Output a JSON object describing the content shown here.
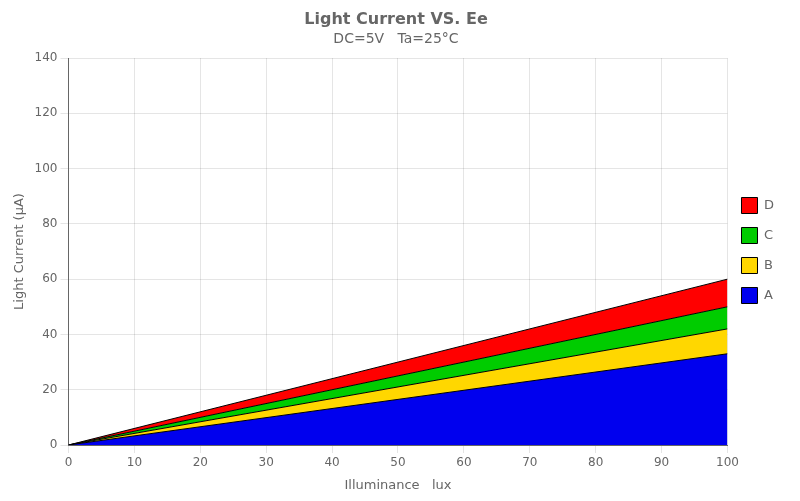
{
  "chart_data": {
    "type": "area",
    "title": "Light Current VS. Ee",
    "subtitle": "DC=5V   Ta=25°C",
    "x_label": "Illuminance   lux",
    "y_label": "Light Current (μA)",
    "x": [
      0,
      100
    ],
    "series": [
      {
        "name": "A",
        "color": "#0000EE",
        "values": [
          0,
          33
        ]
      },
      {
        "name": "B",
        "color": "#FFD700",
        "values": [
          0,
          42
        ]
      },
      {
        "name": "C",
        "color": "#00CC00",
        "values": [
          0,
          50
        ]
      },
      {
        "name": "D",
        "color": "#FF0000",
        "values": [
          0,
          60
        ]
      }
    ],
    "xlim": [
      0,
      100
    ],
    "ylim": [
      0,
      140
    ],
    "xticks": [
      0,
      10,
      20,
      30,
      40,
      50,
      60,
      70,
      80,
      90,
      100
    ],
    "yticks": [
      0,
      20,
      40,
      60,
      80,
      100,
      120,
      140
    ],
    "grid": true,
    "legend": "right"
  }
}
